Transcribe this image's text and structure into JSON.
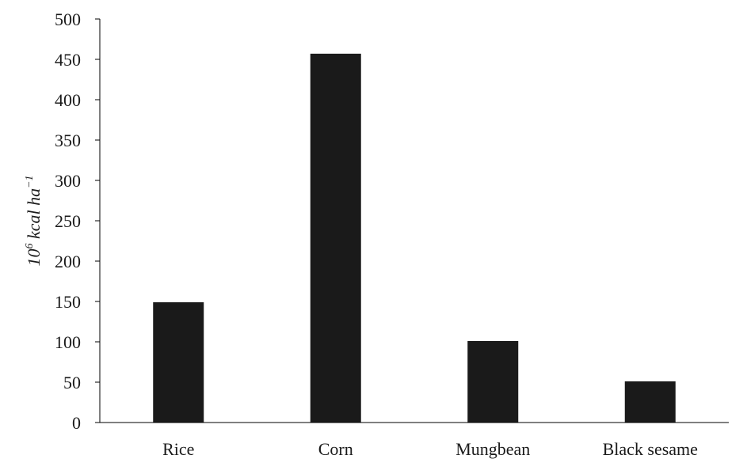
{
  "chart_data": {
    "type": "bar",
    "categories": [
      "Rice",
      "Corn",
      "Mungbean",
      "Black sesame"
    ],
    "values": [
      149,
      457,
      101,
      51
    ],
    "ylabel": {
      "base": "10",
      "exp": "6",
      "unit": "kcal ha",
      "unit_exp": "−1"
    },
    "ylim": [
      0,
      500
    ],
    "yticks": [
      "0",
      "50",
      "100",
      "150",
      "200",
      "250",
      "300",
      "350",
      "400",
      "450",
      "500"
    ],
    "grid": false,
    "legend": "none",
    "bar_color": "#1a1a1a",
    "axis_color": "#000000"
  }
}
